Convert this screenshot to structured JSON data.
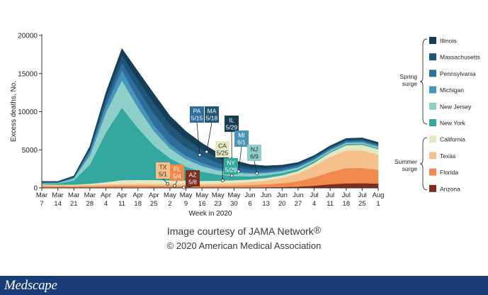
{
  "chart_data": {
    "type": "area",
    "stacked": true,
    "ylabel": "Excess deaths, No.",
    "xlabel": "Week in 2020",
    "ylim": [
      0,
      20000
    ],
    "yticks": [
      0,
      5000,
      10000,
      15000,
      20000
    ],
    "ytick_labels": [
      "0",
      "5000",
      "10000",
      "15000",
      "20000"
    ],
    "grid": false,
    "x_labels": [
      [
        "Mar",
        "7"
      ],
      [
        "Mar",
        "14"
      ],
      [
        "Mar",
        "21"
      ],
      [
        "Mar",
        "28"
      ],
      [
        "Apr",
        "4"
      ],
      [
        "Apr",
        "11"
      ],
      [
        "Apr",
        "18"
      ],
      [
        "Apr",
        "25"
      ],
      [
        "May",
        "2"
      ],
      [
        "May",
        "9"
      ],
      [
        "May",
        "16"
      ],
      [
        "May",
        "23"
      ],
      [
        "May",
        "30"
      ],
      [
        "Jun",
        "6"
      ],
      [
        "Jun",
        "13"
      ],
      [
        "Jun",
        "20"
      ],
      [
        "Jun",
        "27"
      ],
      [
        "Jul",
        "4"
      ],
      [
        "Jul",
        "11"
      ],
      [
        "Jul",
        "18"
      ],
      [
        "Jul",
        "25"
      ],
      [
        "Aug",
        "1"
      ]
    ],
    "legend_position": "right",
    "series": [
      {
        "name": "Arizona",
        "color": "#7d2e22",
        "values": [
          50,
          40,
          45,
          55,
          60,
          70,
          70,
          65,
          60,
          60,
          55,
          55,
          60,
          70,
          90,
          120,
          180,
          300,
          480,
          600,
          620,
          580
        ]
      },
      {
        "name": "Florida",
        "color": "#ef8a4c",
        "values": [
          200,
          180,
          180,
          200,
          220,
          240,
          250,
          250,
          230,
          230,
          220,
          230,
          260,
          300,
          380,
          500,
          700,
          1100,
          1600,
          2000,
          2000,
          1800
        ]
      },
      {
        "name": "Texas",
        "color": "#f6c08c",
        "values": [
          150,
          130,
          130,
          150,
          180,
          210,
          220,
          230,
          240,
          250,
          250,
          280,
          330,
          400,
          500,
          700,
          1000,
          1500,
          2000,
          2300,
          2300,
          2000
        ]
      },
      {
        "name": "California",
        "color": "#e4e8c2",
        "values": [
          80,
          70,
          80,
          150,
          300,
          500,
          520,
          500,
          470,
          430,
          400,
          380,
          370,
          350,
          340,
          340,
          350,
          400,
          550,
          700,
          750,
          700
        ]
      },
      {
        "name": "New York",
        "color": "#34a79e",
        "values": [
          100,
          150,
          550,
          2500,
          6500,
          9500,
          6800,
          4500,
          2900,
          1800,
          1200,
          800,
          550,
          400,
          350,
          300,
          250,
          200,
          150,
          150,
          150,
          150
        ]
      },
      {
        "name": "New Jersey",
        "color": "#8ecfc9",
        "values": [
          60,
          70,
          250,
          1200,
          2600,
          3600,
          2700,
          1900,
          1300,
          1000,
          750,
          550,
          450,
          350,
          280,
          230,
          190,
          160,
          150,
          150,
          150,
          150
        ]
      },
      {
        "name": "Michigan",
        "color": "#4795b8",
        "values": [
          50,
          50,
          100,
          500,
          900,
          1300,
          1100,
          800,
          550,
          450,
          400,
          300,
          200,
          150,
          150,
          150,
          150,
          150,
          150,
          150,
          150,
          150
        ]
      },
      {
        "name": "Pennsylvania",
        "color": "#2e6d9c",
        "values": [
          60,
          60,
          80,
          230,
          600,
          1000,
          1300,
          1500,
          1300,
          1100,
          900,
          700,
          500,
          400,
          300,
          250,
          200,
          150,
          150,
          150,
          150,
          150
        ]
      },
      {
        "name": "Massachusetts",
        "color": "#1f5678",
        "values": [
          60,
          60,
          90,
          230,
          600,
          1000,
          1200,
          1400,
          1300,
          1100,
          900,
          650,
          400,
          300,
          250,
          200,
          160,
          150,
          150,
          150,
          150,
          150
        ]
      },
      {
        "name": "Illinois",
        "color": "#143e57",
        "values": [
          50,
          50,
          80,
          230,
          540,
          870,
          1140,
          1200,
          1100,
          1000,
          800,
          650,
          500,
          350,
          260,
          210,
          170,
          150,
          150,
          150,
          150,
          150
        ]
      }
    ],
    "legend_groups": [
      {
        "label": [
          "Spring",
          "surge"
        ],
        "members": [
          "Illinois",
          "Massachusetts",
          "Pennsylvania",
          "Michigan",
          "New Jersey",
          "New York"
        ]
      },
      {
        "label": [
          "Summer",
          "surge"
        ],
        "members": [
          "California",
          "Texas",
          "Florida",
          "Arizona"
        ]
      }
    ],
    "annotations": [
      {
        "lines": [
          "PA",
          "5/15"
        ],
        "x_index": 9.86,
        "color": "#2e6d9c",
        "text_color": "#ffffff"
      },
      {
        "lines": [
          "MA",
          "5/18"
        ],
        "x_index": 10.29,
        "color": "#1f5678",
        "text_color": "#ffffff"
      },
      {
        "lines": [
          "IL",
          "5/29"
        ],
        "x_index": 11.86,
        "color": "#143e57",
        "text_color": "#ffffff"
      },
      {
        "lines": [
          "CA",
          "5/25"
        ],
        "x_index": 11.29,
        "color": "#e4e8c2",
        "text_color": "#2b2b2b"
      },
      {
        "lines": [
          "MI",
          "6/1"
        ],
        "x_index": 12.29,
        "color": "#4795b8",
        "text_color": "#ffffff"
      },
      {
        "lines": [
          "NJ",
          "6/9"
        ],
        "x_index": 13.43,
        "color": "#8ecfc9",
        "text_color": "#2b2b2b"
      },
      {
        "lines": [
          "NY",
          "5/29"
        ],
        "x_index": 11.86,
        "color": "#34a79e",
        "text_color": "#ffffff"
      },
      {
        "lines": [
          "TX",
          "5/1"
        ],
        "x_index": 7.86,
        "color": "#f6c08c",
        "text_color": "#2b2b2b"
      },
      {
        "lines": [
          "FL",
          "5/4"
        ],
        "x_index": 8.29,
        "color": "#ef8a4c",
        "text_color": "#ffffff"
      },
      {
        "lines": [
          "AZ",
          "5/8"
        ],
        "x_index": 8.86,
        "color": "#7d2e22",
        "text_color": "#ffffff"
      }
    ]
  },
  "credits": {
    "line1": "Image courtesy of JAMA Network",
    "line1_mark": "®",
    "line2": "© 2020 American Medical Association"
  },
  "footer": {
    "brand": "Medscape",
    "color": "#1a3c78"
  }
}
